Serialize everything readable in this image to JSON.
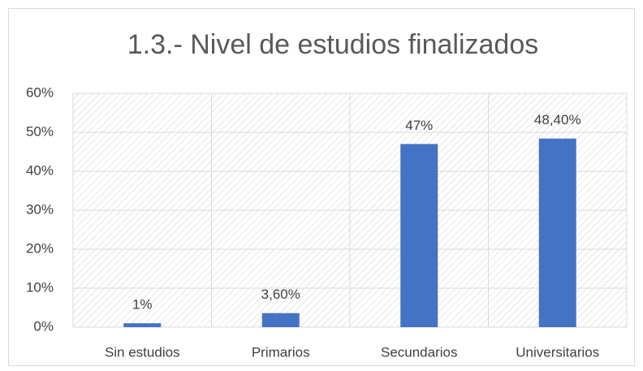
{
  "chart_data": {
    "type": "bar",
    "title": "1.3.- Nivel de estudios finalizados",
    "categories": [
      "Sin estudios",
      "Primarios",
      "Secundarios",
      "Universitarios"
    ],
    "values": [
      1,
      3.6,
      47,
      48.4
    ],
    "value_labels": [
      "1%",
      "3,60%",
      "47%",
      "48,40%"
    ],
    "color": "#4472c4",
    "ylim": [
      0,
      60
    ],
    "yticks": [
      {
        "value": 0,
        "label": "0%"
      },
      {
        "value": 10,
        "label": "10%"
      },
      {
        "value": 20,
        "label": "20%"
      },
      {
        "value": 30,
        "label": "30%"
      },
      {
        "value": 40,
        "label": "40%"
      },
      {
        "value": 50,
        "label": "50%"
      },
      {
        "value": 60,
        "label": "60%"
      }
    ],
    "grid": true
  }
}
